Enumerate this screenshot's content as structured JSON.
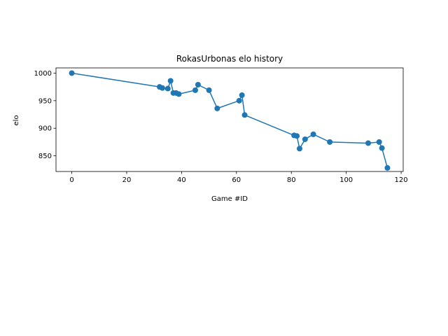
{
  "chart_data": {
    "type": "line",
    "title": "RokasUrbonas elo history",
    "xlabel": "Game #ID",
    "ylabel": "elo",
    "xlim": [
      -5.75,
      120.75
    ],
    "ylim": [
      821.5,
      1009.5
    ],
    "xticks": [
      0,
      20,
      40,
      60,
      80,
      100,
      120
    ],
    "yticks": [
      850,
      900,
      950,
      1000
    ],
    "grid": false,
    "series_color": "#1f77b4",
    "marker": "circle",
    "points": [
      {
        "x": 0,
        "y": 1000
      },
      {
        "x": 32,
        "y": 975
      },
      {
        "x": 33,
        "y": 973
      },
      {
        "x": 35,
        "y": 972
      },
      {
        "x": 36,
        "y": 986
      },
      {
        "x": 37,
        "y": 964
      },
      {
        "x": 38,
        "y": 964
      },
      {
        "x": 39,
        "y": 962
      },
      {
        "x": 45,
        "y": 969
      },
      {
        "x": 46,
        "y": 979
      },
      {
        "x": 50,
        "y": 969
      },
      {
        "x": 53,
        "y": 936
      },
      {
        "x": 61,
        "y": 950
      },
      {
        "x": 62,
        "y": 960
      },
      {
        "x": 63,
        "y": 924
      },
      {
        "x": 81,
        "y": 887
      },
      {
        "x": 82,
        "y": 886
      },
      {
        "x": 83,
        "y": 863
      },
      {
        "x": 85,
        "y": 880
      },
      {
        "x": 88,
        "y": 889
      },
      {
        "x": 94,
        "y": 875
      },
      {
        "x": 108,
        "y": 873
      },
      {
        "x": 112,
        "y": 875
      },
      {
        "x": 113,
        "y": 864
      },
      {
        "x": 115,
        "y": 828
      }
    ]
  }
}
